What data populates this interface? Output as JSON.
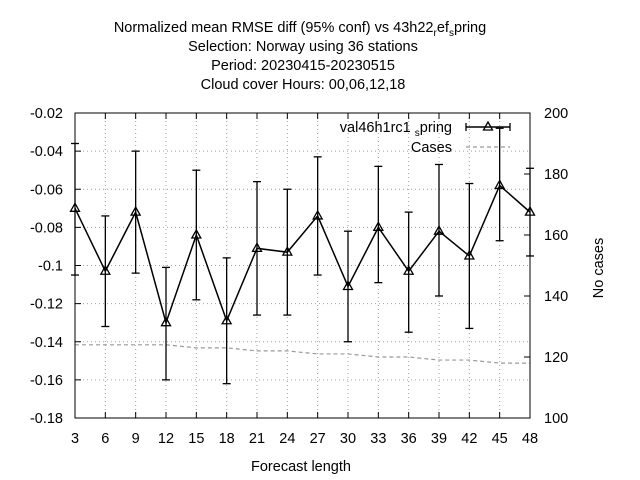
{
  "chart_data": {
    "type": "line",
    "title_lines": [
      "Normalized mean RMSE diff (95% conf) vs 43h22",
      "Selection: Norway using    36 stations",
      "Period: 20230415-20230515",
      "Cloud cover   Hours:  00,06,12,18"
    ],
    "title_suffix": {
      "sub1": "r",
      "mid": "ef",
      "sub2": "s",
      "tail": "pring"
    },
    "xlabel": "Forecast length",
    "ylabel": "",
    "y2label": "No cases",
    "x": [
      3,
      6,
      9,
      12,
      15,
      18,
      21,
      24,
      27,
      30,
      33,
      36,
      39,
      42,
      45,
      48
    ],
    "xlim": [
      3,
      48
    ],
    "ylim": [
      -0.18,
      -0.02
    ],
    "y2lim": [
      100,
      200
    ],
    "x_ticks": [
      "3",
      "6",
      "9",
      "12",
      "15",
      "18",
      "21",
      "24",
      "27",
      "30",
      "33",
      "36",
      "39",
      "42",
      "45",
      "48"
    ],
    "y_ticks": [
      "-0.02",
      "-0.04",
      "-0.06",
      "-0.08",
      "-0.1",
      "-0.12",
      "-0.14",
      "-0.16",
      "-0.18"
    ],
    "y2_ticks": [
      "200",
      "180",
      "160",
      "140",
      "120",
      "100"
    ],
    "series": [
      {
        "name": "val46h1rc1",
        "name_sub": "s",
        "name_tail": "pring",
        "color": "#000000",
        "values": [
          -0.07,
          -0.103,
          -0.072,
          -0.13,
          -0.084,
          -0.129,
          -0.091,
          -0.093,
          -0.074,
          -0.111,
          -0.08,
          -0.103,
          -0.082,
          -0.095,
          -0.058,
          -0.072
        ],
        "err_low": [
          -0.105,
          -0.132,
          -0.104,
          -0.16,
          -0.118,
          -0.162,
          -0.126,
          -0.126,
          -0.105,
          -0.14,
          -0.109,
          -0.135,
          -0.116,
          -0.133,
          -0.087,
          -0.095
        ],
        "err_high": [
          -0.036,
          -0.074,
          -0.04,
          -0.101,
          -0.05,
          -0.096,
          -0.056,
          -0.06,
          -0.043,
          -0.082,
          -0.048,
          -0.072,
          -0.047,
          -0.057,
          -0.028,
          -0.049
        ]
      },
      {
        "name": "Cases",
        "color": "#999999",
        "axis": "right",
        "values": [
          124,
          124,
          124,
          124,
          123,
          123,
          122,
          122,
          121,
          121,
          120,
          120,
          119,
          119,
          118,
          118
        ]
      }
    ],
    "grid": true,
    "legend_position": "top-right"
  }
}
